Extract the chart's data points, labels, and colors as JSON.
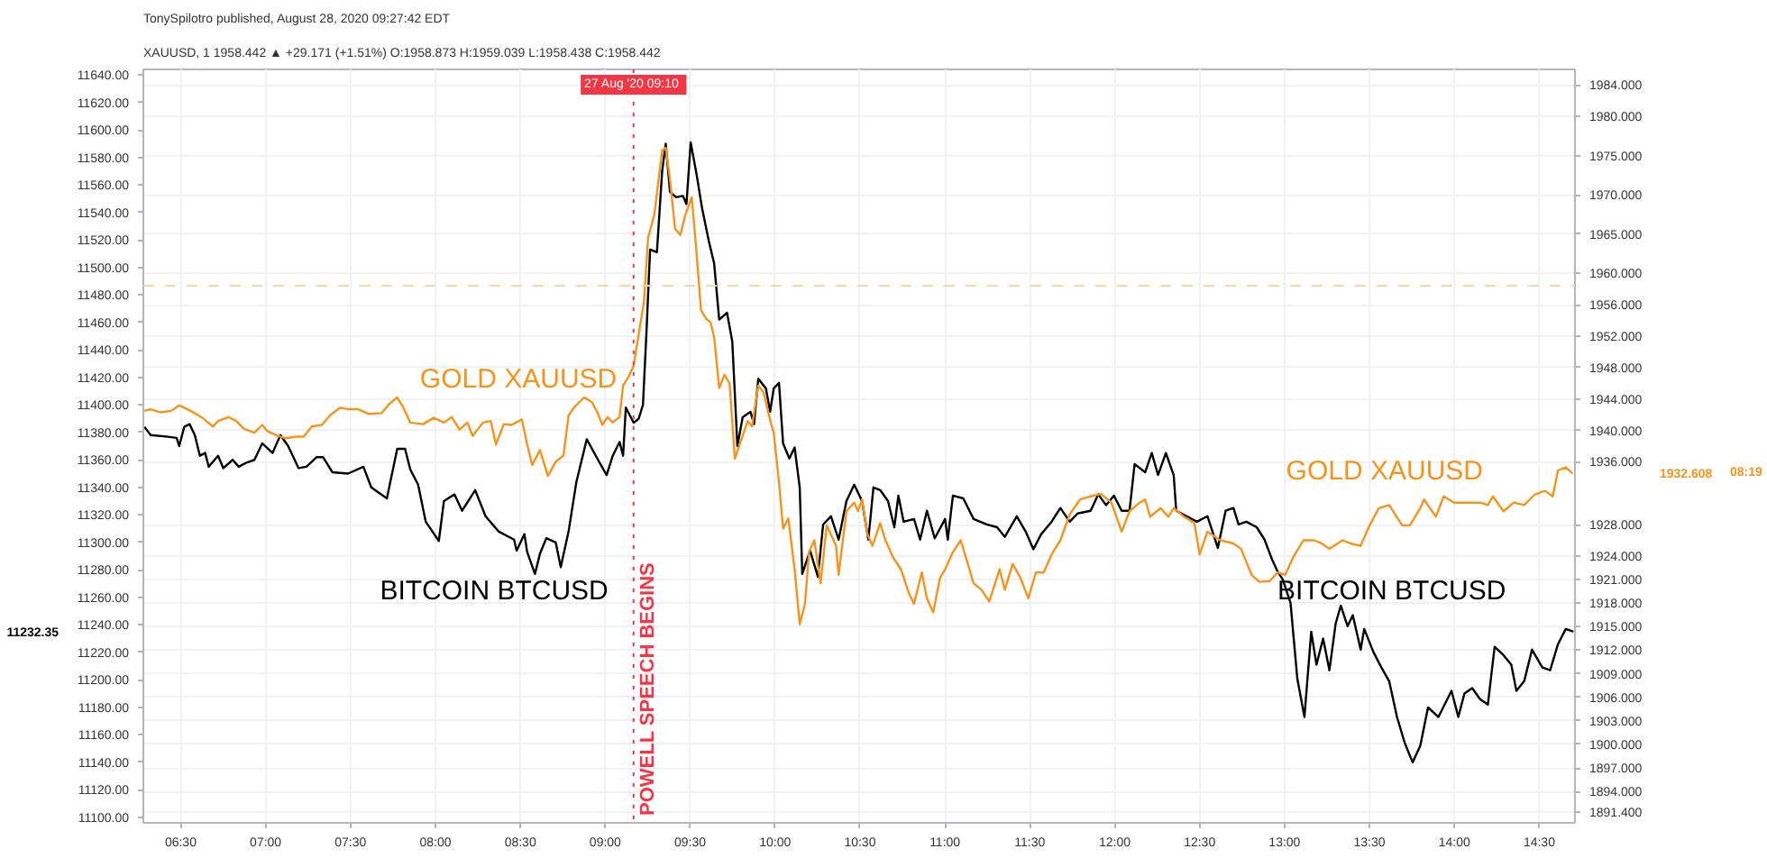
{
  "chart_data": {
    "type": "line",
    "title": "TonySpilotro published, August 28, 2020 09:27:42 EDT",
    "subtitle": "XAUUSD, 1  1958.442 ▲ +29.171 (+1.51%) O:1958.873 H:1959.039 L:1958.438 C:1958.442",
    "xlim": [
      6.28,
      14.71
    ],
    "ylim": [
      11096,
      11644
    ],
    "y2lim": [
      1890,
      1986
    ],
    "xticks": [
      {
        "value": 6.5,
        "label": "06:30"
      },
      {
        "value": 7,
        "label": "07:00"
      },
      {
        "value": 7.5,
        "label": "07:30"
      },
      {
        "value": 8,
        "label": "08:00"
      },
      {
        "value": 8.5,
        "label": "08:30"
      },
      {
        "value": 9,
        "label": "09:00"
      },
      {
        "value": 9.5,
        "label": "09:30"
      },
      {
        "value": 10,
        "label": "10:00"
      },
      {
        "value": 10.5,
        "label": "10:30"
      },
      {
        "value": 11,
        "label": "11:00"
      },
      {
        "value": 11.5,
        "label": "11:30"
      },
      {
        "value": 12,
        "label": "12:00"
      },
      {
        "value": 12.5,
        "label": "12:30"
      },
      {
        "value": 13,
        "label": "13:00"
      },
      {
        "value": 13.5,
        "label": "13:30"
      },
      {
        "value": 14,
        "label": "14:00"
      },
      {
        "value": 14.5,
        "label": "14:30"
      }
    ],
    "yticks": [
      {
        "value": 11100,
        "label": "11100.00"
      },
      {
        "value": 11120,
        "label": "11120.00"
      },
      {
        "value": 11140,
        "label": "11140.00"
      },
      {
        "value": 11160,
        "label": "11160.00"
      },
      {
        "value": 11180,
        "label": "11180.00"
      },
      {
        "value": 11200,
        "label": "11200.00"
      },
      {
        "value": 11220,
        "label": "11220.00"
      },
      {
        "value": 11240,
        "label": "11240.00"
      },
      {
        "value": 11260,
        "label": "11260.00"
      },
      {
        "value": 11280,
        "label": "11280.00"
      },
      {
        "value": 11300,
        "label": "11300.00"
      },
      {
        "value": 11320,
        "label": "11320.00"
      },
      {
        "value": 11340,
        "label": "11340.00"
      },
      {
        "value": 11360,
        "label": "11360.00"
      },
      {
        "value": 11380,
        "label": "11380.00"
      },
      {
        "value": 11400,
        "label": "11400.00"
      },
      {
        "value": 11420,
        "label": "11420.00"
      },
      {
        "value": 11440,
        "label": "11440.00"
      },
      {
        "value": 11460,
        "label": "11460.00"
      },
      {
        "value": 11480,
        "label": "11480.00"
      },
      {
        "value": 11500,
        "label": "11500.00"
      },
      {
        "value": 11520,
        "label": "11520.00"
      },
      {
        "value": 11540,
        "label": "11540.00"
      },
      {
        "value": 11560,
        "label": "11560.00"
      },
      {
        "value": 11580,
        "label": "11580.00"
      },
      {
        "value": 11600,
        "label": "11600.00"
      },
      {
        "value": 11620,
        "label": "11620.00"
      },
      {
        "value": 11640,
        "label": "11640.00"
      }
    ],
    "y2ticks": [
      {
        "value": 1984,
        "label": "1984.000"
      },
      {
        "value": 1980,
        "label": "1980.000"
      },
      {
        "value": 1975,
        "label": "1975.000"
      },
      {
        "value": 1970,
        "label": "1970.000"
      },
      {
        "value": 1965,
        "label": "1965.000"
      },
      {
        "value": 1960,
        "label": "1960.000"
      },
      {
        "value": 1956,
        "label": "1956.000"
      },
      {
        "value": 1952,
        "label": "1952.000"
      },
      {
        "value": 1948,
        "label": "1948.000"
      },
      {
        "value": 1944,
        "label": "1944.000"
      },
      {
        "value": 1940,
        "label": "1940.000"
      },
      {
        "value": 1936,
        "label": "1936.000"
      },
      {
        "value": 1928,
        "label": "1928.000"
      },
      {
        "value": 1924,
        "label": "1924.000"
      },
      {
        "value": 1921,
        "label": "1921.000"
      },
      {
        "value": 1918,
        "label": "1918.000"
      },
      {
        "value": 1915,
        "label": "1915.000"
      },
      {
        "value": 1912,
        "label": "1912.000"
      },
      {
        "value": 1909,
        "label": "1909.000"
      },
      {
        "value": 1906,
        "label": "1906.000"
      },
      {
        "value": 1903,
        "label": "1903.000"
      },
      {
        "value": 1900,
        "label": "1900.000"
      },
      {
        "value": 1897,
        "label": "1897.000"
      },
      {
        "value": 1894,
        "label": "1894.000"
      },
      {
        "value": 1891.4,
        "label": "1891.400"
      }
    ],
    "grid": true,
    "series": [
      {
        "name": "BITCOIN BTCUSD",
        "color": "#000000",
        "x": [
          6.286,
          6.323,
          6.414,
          6.476,
          6.491,
          6.521,
          6.552,
          6.583,
          6.613,
          6.644,
          6.665,
          6.72,
          6.751,
          6.806,
          6.842,
          6.888,
          6.934,
          6.98,
          7.041,
          7.087,
          7.133,
          7.194,
          7.24,
          7.301,
          7.338,
          7.393,
          7.485,
          7.576,
          7.622,
          7.714,
          7.775,
          7.821,
          7.852,
          7.898,
          7.943,
          8.02,
          8.05,
          8.112,
          8.157,
          8.234,
          8.295,
          8.371,
          8.463,
          8.478,
          8.524,
          8.54,
          8.586,
          8.616,
          8.653,
          8.708,
          8.738,
          8.784,
          8.83,
          8.891,
          8.953,
          9.008,
          9.044,
          9.084,
          9.105,
          9.121,
          9.167,
          9.197,
          9.222,
          9.243,
          9.264,
          9.304,
          9.335,
          9.356,
          9.381,
          9.417,
          9.457,
          9.478,
          9.503,
          9.54,
          9.57,
          9.61,
          9.641,
          9.671,
          9.717,
          9.748,
          9.778,
          9.809,
          9.855,
          9.876,
          9.901,
          9.946,
          9.971,
          9.992,
          10.023,
          10.047,
          10.084,
          10.115,
          10.145,
          10.16,
          10.206,
          10.252,
          10.283,
          10.329,
          10.374,
          10.42,
          10.466,
          10.512,
          10.549,
          10.579,
          10.619,
          10.665,
          10.702,
          10.726,
          10.757,
          10.818,
          10.854,
          10.894,
          10.94,
          11.001,
          11.017,
          11.047,
          11.108,
          11.169,
          11.246,
          11.307,
          11.353,
          11.423,
          11.475,
          11.521,
          11.567,
          11.628,
          11.68,
          11.735,
          11.781,
          11.858,
          11.903,
          11.949,
          11.995,
          12.041,
          12.087,
          12.117,
          12.179,
          12.218,
          12.255,
          12.301,
          12.347,
          12.362,
          12.423,
          12.484,
          12.546,
          12.607,
          12.653,
          12.699,
          12.729,
          12.775,
          12.836,
          12.882,
          12.928,
          12.958,
          12.989,
          13.035,
          13.075,
          13.117,
          13.157,
          13.188,
          13.227,
          13.264,
          13.301,
          13.331,
          13.371,
          13.402,
          13.448,
          13.469,
          13.524,
          13.57,
          13.616,
          13.662,
          13.708,
          13.754,
          13.799,
          13.845,
          13.906,
          13.983,
          14.023,
          14.059,
          14.105,
          14.151,
          14.197,
          14.237,
          14.289,
          14.335,
          14.365,
          14.411,
          14.457,
          14.518,
          14.564,
          14.61,
          14.656,
          14.701
        ],
        "values": [
          11384,
          11378,
          11377,
          11376,
          11370,
          11384,
          11386,
          11378,
          11363,
          11365,
          11355,
          11363,
          11354,
          11360,
          11355,
          11358,
          11360,
          11372,
          11365,
          11378,
          11370,
          11354,
          11355,
          11362,
          11362,
          11351,
          11350,
          11355,
          11340,
          11332,
          11368,
          11368,
          11353,
          11342,
          11315,
          11301,
          11330,
          11335,
          11323,
          11338,
          11319,
          11308,
          11302,
          11294,
          11306,
          11293,
          11277,
          11292,
          11303,
          11300,
          11282,
          11308,
          11344,
          11375,
          11361,
          11349,
          11363,
          11373,
          11363,
          11398,
          11387,
          11390,
          11400,
          11454,
          11513,
          11511,
          11570,
          11590,
          11555,
          11551,
          11552,
          11546,
          11591,
          11566,
          11543,
          11519,
          11503,
          11462,
          11467,
          11446,
          11370,
          11391,
          11395,
          11386,
          11419,
          11412,
          11395,
          11412,
          11416,
          11372,
          11361,
          11369,
          11340,
          11277,
          11294,
          11275,
          11313,
          11319,
          11302,
          11330,
          11342,
          11330,
          11302,
          11340,
          11338,
          11330,
          11311,
          11334,
          11315,
          11317,
          11302,
          11323,
          11303,
          11317,
          11302,
          11334,
          11332,
          11317,
          11313,
          11311,
          11304,
          11319,
          11308,
          11295,
          11306,
          11315,
          11325,
          11315,
          11321,
          11323,
          11335,
          11327,
          11334,
          11323,
          11323,
          11357,
          11351,
          11365,
          11349,
          11365,
          11349,
          11323,
          11319,
          11315,
          11319,
          11296,
          11323,
          11325,
          11313,
          11315,
          11311,
          11302,
          11287,
          11279,
          11273,
          11256,
          11201,
          11173,
          11235,
          11211,
          11230,
          11207,
          11241,
          11254,
          11239,
          11247,
          11222,
          11237,
          11220,
          11209,
          11199,
          11173,
          11154,
          11140,
          11152,
          11180,
          11173,
          11192,
          11173,
          11190,
          11194,
          11186,
          11182,
          11224,
          11218,
          11211,
          11192,
          11199,
          11222,
          11209,
          11207,
          11226,
          11237,
          11235
        ]
      },
      {
        "name": "GOLD XAUUSD",
        "color": "#f7931a",
        "axis": "y2",
        "x": [
          6.286,
          6.323,
          6.384,
          6.445,
          6.491,
          6.521,
          6.583,
          6.628,
          6.69,
          6.72,
          6.781,
          6.827,
          6.873,
          6.934,
          6.98,
          7.011,
          7.072,
          7.118,
          7.179,
          7.225,
          7.271,
          7.332,
          7.378,
          7.439,
          7.485,
          7.546,
          7.607,
          7.683,
          7.729,
          7.775,
          7.806,
          7.852,
          7.928,
          7.989,
          8.05,
          8.096,
          8.142,
          8.188,
          8.219,
          8.28,
          8.326,
          8.356,
          8.402,
          8.448,
          8.509,
          8.54,
          8.57,
          8.616,
          8.662,
          8.708,
          8.754,
          8.784,
          8.815,
          8.876,
          8.922,
          8.953,
          8.983,
          9.014,
          9.044,
          9.084,
          9.105,
          9.136,
          9.167,
          9.197,
          9.228,
          9.252,
          9.289,
          9.335,
          9.356,
          9.381,
          9.411,
          9.442,
          9.472,
          9.509,
          9.533,
          9.564,
          9.595,
          9.619,
          9.641,
          9.671,
          9.702,
          9.732,
          9.763,
          9.809,
          9.839,
          9.864,
          9.901,
          9.931,
          9.977,
          9.992,
          10.023,
          10.047,
          10.078,
          10.115,
          10.145,
          10.176,
          10.2,
          10.231,
          10.268,
          10.304,
          10.359,
          10.374,
          10.42,
          10.466,
          10.488,
          10.512,
          10.543,
          10.573,
          10.619,
          10.65,
          10.695,
          10.741,
          10.787,
          10.818,
          10.864,
          10.894,
          10.931,
          10.971,
          11.001,
          11.047,
          11.093,
          11.124,
          11.169,
          11.215,
          11.261,
          11.322,
          11.353,
          11.399,
          11.445,
          11.491,
          11.536,
          11.582,
          11.628,
          11.68,
          11.735,
          11.796,
          11.858,
          11.919,
          11.98,
          12.041,
          12.087,
          12.148,
          12.179,
          12.209,
          12.27,
          12.316,
          12.347,
          12.408,
          12.469,
          12.5,
          12.546,
          12.622,
          12.699,
          12.744,
          12.806,
          12.851,
          12.913,
          12.958,
          13.004,
          13.05,
          13.111,
          13.173,
          13.218,
          13.264,
          13.341,
          13.387,
          13.448,
          13.494,
          13.555,
          13.616,
          13.692,
          13.738,
          13.799,
          13.821,
          13.891,
          13.937,
          13.998,
          14.059,
          14.151,
          14.197,
          14.227,
          14.289,
          14.35,
          14.411,
          14.472,
          14.533,
          14.579,
          14.61,
          14.656,
          14.696
        ],
        "values": [
          1942.5,
          1942.7,
          1942.3,
          1942.5,
          1943.2,
          1942.9,
          1942.2,
          1941.6,
          1940.5,
          1941.2,
          1941.7,
          1941.2,
          1940.2,
          1939.7,
          1940.7,
          1939.9,
          1939.3,
          1939.0,
          1939.2,
          1939.2,
          1940.5,
          1940.7,
          1941.9,
          1942.9,
          1942.7,
          1942.7,
          1942.1,
          1942.2,
          1943.4,
          1944.2,
          1943.1,
          1941.0,
          1940.8,
          1941.6,
          1941.0,
          1941.7,
          1940.1,
          1941.0,
          1939.3,
          1941.0,
          1941.2,
          1938.2,
          1940.8,
          1940.7,
          1941.4,
          1938.2,
          1935.6,
          1937.5,
          1934.2,
          1936.0,
          1936.8,
          1941.9,
          1942.9,
          1944.2,
          1943.6,
          1942.3,
          1940.7,
          1941.7,
          1941.0,
          1941.7,
          1945.7,
          1946.8,
          1948.2,
          1952.3,
          1956.4,
          1964.5,
          1967.5,
          1975.7,
          1976.0,
          1972.0,
          1965.7,
          1964.9,
          1967.5,
          1969.7,
          1963.8,
          1955.3,
          1954.2,
          1953.8,
          1951.9,
          1945.4,
          1947.1,
          1946.0,
          1936.4,
          1939.3,
          1941.2,
          1940.5,
          1945.7,
          1944.9,
          1940.8,
          1939.7,
          1933.4,
          1927.5,
          1928.8,
          1922.3,
          1915.3,
          1917.9,
          1924.5,
          1926.0,
          1920.5,
          1927.9,
          1925.3,
          1921.6,
          1929.7,
          1930.8,
          1929.7,
          1931.2,
          1926.8,
          1925.3,
          1928.2,
          1926.0,
          1923.8,
          1922.3,
          1919.3,
          1917.9,
          1921.9,
          1918.6,
          1916.8,
          1921.2,
          1922.3,
          1924.5,
          1926.0,
          1923.8,
          1920.5,
          1919.7,
          1918.2,
          1922.3,
          1919.7,
          1923.0,
          1921.2,
          1918.6,
          1921.9,
          1921.9,
          1924.2,
          1926.0,
          1929.3,
          1931.2,
          1931.6,
          1931.9,
          1930.8,
          1927.1,
          1929.7,
          1930.8,
          1931.2,
          1929.0,
          1930.1,
          1929.0,
          1930.1,
          1929.0,
          1928.2,
          1924.2,
          1927.1,
          1926.0,
          1925.6,
          1924.9,
          1921.6,
          1920.7,
          1920.8,
          1921.9,
          1921.6,
          1923.8,
          1926.0,
          1926.0,
          1925.6,
          1924.9,
          1926.0,
          1925.6,
          1925.3,
          1927.6,
          1930.1,
          1930.5,
          1927.9,
          1927.9,
          1930.1,
          1931.2,
          1929.0,
          1931.6,
          1930.8,
          1930.8,
          1930.8,
          1930.5,
          1931.6,
          1929.7,
          1930.8,
          1930.5,
          1931.8,
          1932.3,
          1931.6,
          1934.9,
          1935.3,
          1934.5
        ]
      }
    ],
    "ref_lines": [
      {
        "axis": "x",
        "value": 9.1667,
        "label": "POWELL SPEECH BEGINS",
        "color": "#f23645",
        "line_style": "dotted"
      },
      {
        "axis": "y2",
        "value": 1958.442,
        "color": "#fbd3a0",
        "line_style": "dashed"
      }
    ],
    "annotations": [
      "11232.35",
      "1932.608",
      "08:19",
      {
        "text": "27 Aug '20  09:10",
        "x": 9.1667
      }
    ]
  }
}
